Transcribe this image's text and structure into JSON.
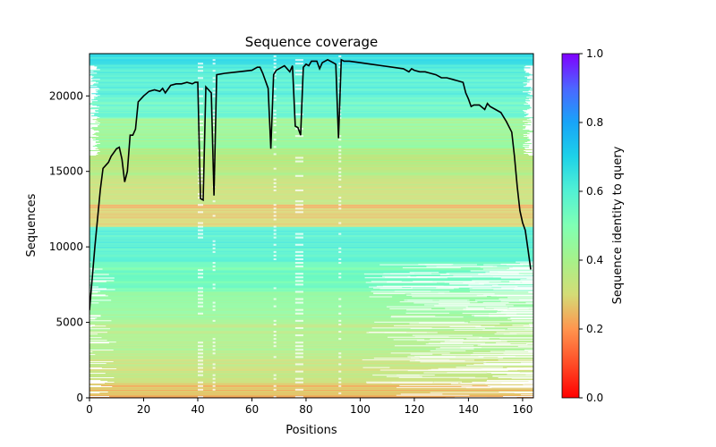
{
  "chart_data": {
    "type": "heatmap",
    "title": "Sequence coverage",
    "xlabel": "Positions",
    "ylabel": "Sequences",
    "xlim": [
      0,
      164
    ],
    "ylim": [
      0,
      22800
    ],
    "xticks": [
      "0",
      "20",
      "40",
      "60",
      "80",
      "100",
      "120",
      "140",
      "160"
    ],
    "yticks": [
      "0",
      "5000",
      "10000",
      "15000",
      "20000"
    ],
    "colorbar": {
      "label": "Sequence identity to query",
      "range": [
        0.0,
        1.0
      ],
      "ticks": [
        "0.0",
        "0.2",
        "0.4",
        "0.6",
        "0.8",
        "1.0"
      ],
      "colormap": "rainbow"
    },
    "identity_bands": [
      {
        "y_from": 0,
        "y_to": 900,
        "identity": 0.25
      },
      {
        "y_from": 900,
        "y_to": 2500,
        "identity": 0.33
      },
      {
        "y_from": 2500,
        "y_to": 5000,
        "identity": 0.38
      },
      {
        "y_from": 5000,
        "y_to": 7000,
        "identity": 0.44
      },
      {
        "y_from": 7000,
        "y_to": 9000,
        "identity": 0.52
      },
      {
        "y_from": 9000,
        "y_to": 11300,
        "identity": 0.6
      },
      {
        "y_from": 11300,
        "y_to": 12800,
        "identity": 0.27
      },
      {
        "y_from": 12800,
        "y_to": 14500,
        "identity": 0.32
      },
      {
        "y_from": 14500,
        "y_to": 16500,
        "identity": 0.37
      },
      {
        "y_from": 16500,
        "y_to": 18500,
        "identity": 0.43
      },
      {
        "y_from": 18500,
        "y_to": 20000,
        "identity": 0.56
      },
      {
        "y_from": 20000,
        "y_to": 22000,
        "identity": 0.61
      },
      {
        "y_from": 22000,
        "y_to": 22800,
        "identity": 0.66
      }
    ],
    "coverage_line": {
      "color": "#000000",
      "x": [
        0,
        2,
        4,
        5,
        7,
        8,
        10,
        11,
        12,
        13,
        14,
        15,
        16,
        17,
        18,
        20,
        22,
        24,
        26,
        27,
        28,
        30,
        32,
        34,
        36,
        38,
        39,
        40,
        41,
        42,
        43,
        45,
        46,
        47,
        50,
        55,
        60,
        62,
        63,
        64,
        66,
        67,
        68,
        69,
        72,
        74,
        75,
        76,
        77,
        78,
        79,
        80,
        81,
        82,
        84,
        85,
        86,
        88,
        90,
        91,
        92,
        93,
        94,
        96,
        100,
        104,
        108,
        112,
        116,
        118,
        119,
        120,
        122,
        124,
        126,
        128,
        130,
        132,
        134,
        136,
        138,
        139,
        140,
        141,
        142,
        144,
        146,
        147,
        148,
        150,
        152,
        154,
        156,
        157,
        158,
        159,
        160,
        161,
        162,
        163
      ],
      "y": [
        5800,
        10000,
        13800,
        15200,
        15600,
        16000,
        16500,
        16600,
        15800,
        14300,
        15000,
        17400,
        17400,
        17800,
        19600,
        20000,
        20300,
        20400,
        20300,
        20500,
        20200,
        20700,
        20800,
        20800,
        20900,
        20800,
        20900,
        20900,
        13200,
        13100,
        20600,
        20200,
        13400,
        21400,
        21500,
        21600,
        21700,
        21900,
        21900,
        21500,
        20500,
        16500,
        21400,
        21700,
        22000,
        21600,
        22000,
        18000,
        17900,
        17400,
        21900,
        22100,
        22000,
        22300,
        22300,
        21800,
        22200,
        22400,
        22200,
        22100,
        17200,
        22400,
        22300,
        22300,
        22200,
        22100,
        22000,
        21900,
        21800,
        21600,
        21800,
        21700,
        21600,
        21600,
        21500,
        21400,
        21200,
        21200,
        21100,
        21000,
        20900,
        20200,
        19800,
        19300,
        19400,
        19400,
        19100,
        19500,
        19300,
        19100,
        18900,
        18300,
        17600,
        16000,
        14000,
        12400,
        11600,
        11100,
        9800,
        8500
      ]
    },
    "grid": false,
    "legend": "none"
  }
}
